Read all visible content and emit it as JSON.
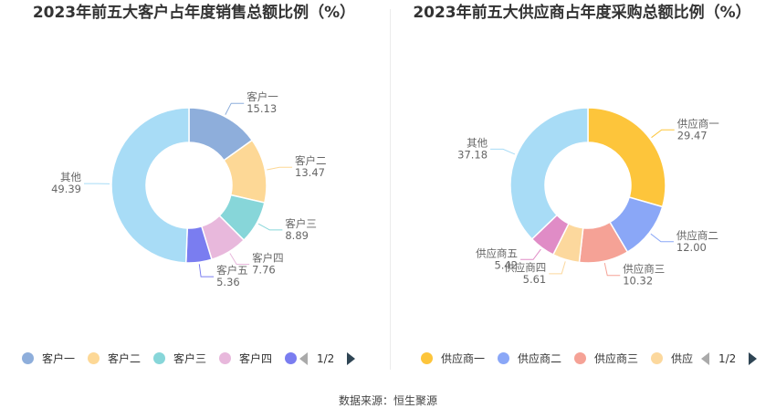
{
  "chart_data": [
    {
      "type": "pie",
      "donut": true,
      "title": "2023年前五大客户占年度销售总额比例（%）",
      "categories": [
        "客户一",
        "客户二",
        "客户三",
        "客户四",
        "客户五",
        "其他"
      ],
      "values": [
        15.13,
        13.47,
        8.89,
        7.76,
        5.36,
        49.39
      ],
      "value_labels": [
        "15.13",
        "13.47",
        "8.89",
        "7.76",
        "5.36",
        "49.39"
      ],
      "colors": [
        "#8eaedb",
        "#fdd896",
        "#87d6d9",
        "#e8b8dc",
        "#7a7df0",
        "#a8dcf6"
      ],
      "legend": {
        "position": "bottom",
        "items": [
          "客户一",
          "客户二",
          "客户三",
          "客户四",
          "客户五"
        ],
        "page": "1/2"
      }
    },
    {
      "type": "pie",
      "donut": true,
      "title": "2023年前五大供应商占年度采购总额比例（%）",
      "categories": [
        "供应商一",
        "供应商二",
        "供应商三",
        "供应商四",
        "供应商五",
        "其他"
      ],
      "values": [
        29.47,
        12.0,
        10.32,
        5.61,
        5.42,
        37.18
      ],
      "value_labels": [
        "29.47",
        "12.00",
        "10.32",
        "5.61",
        "5.42",
        "37.18"
      ],
      "colors": [
        "#fdc53b",
        "#8aa7f7",
        "#f5a296",
        "#fcd89d",
        "#e08cc6",
        "#a8dcf6"
      ],
      "legend": {
        "position": "bottom",
        "items": [
          "供应商一",
          "供应商二",
          "供应商三",
          "供应"
        ],
        "page": "1/2"
      }
    }
  ],
  "footer": "数据来源：恒生聚源"
}
